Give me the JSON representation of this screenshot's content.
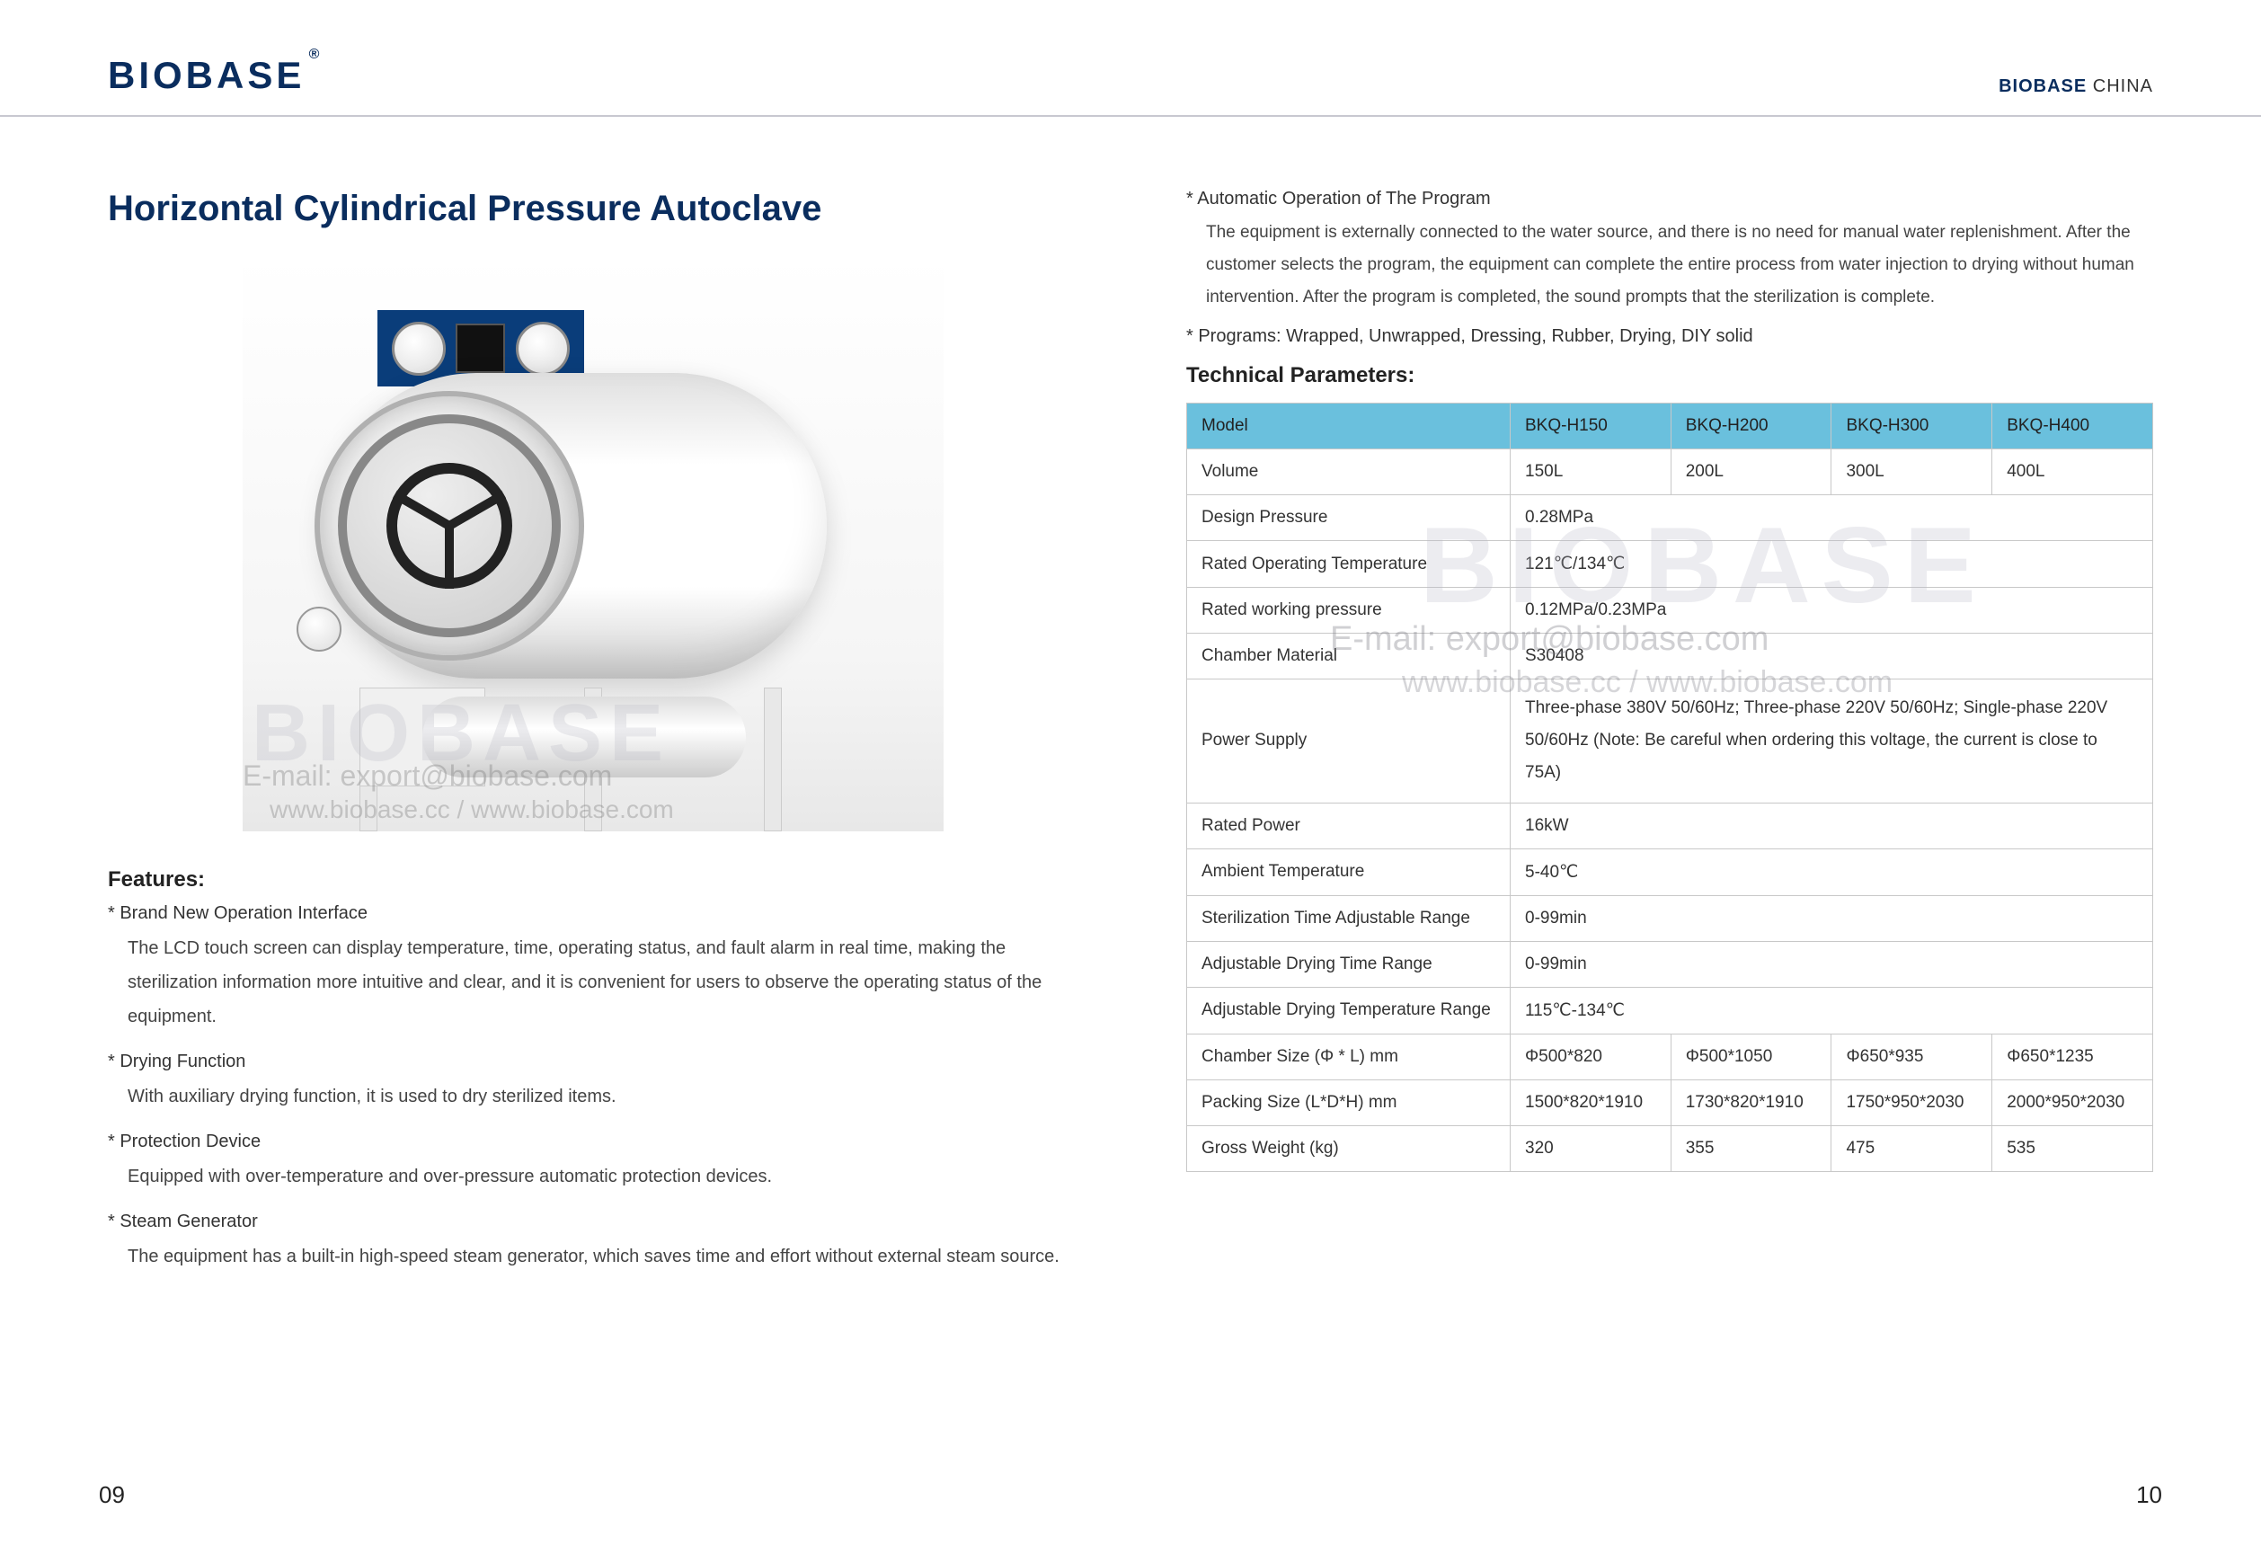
{
  "header": {
    "logo": "BIOBASE",
    "logo_sup": "®",
    "brand_right_bold": "BIOBASE",
    "brand_right_light": " CHINA"
  },
  "title": "Horizontal Cylindrical Pressure Autoclave",
  "watermarks": {
    "big": "BIOBASE",
    "email": "E-mail: export@biobase.com",
    "sites": "www.biobase.cc / www.biobase.com"
  },
  "features_title": "Features:",
  "features": [
    {
      "head": "Brand New Operation Interface",
      "body": "The LCD touch screen can display temperature, time, operating status, and fault alarm in real time, making the sterilization information more intuitive and clear, and it is convenient for users to observe the operating status of the equipment."
    },
    {
      "head": "Drying Function",
      "body": "With auxiliary drying function, it is used to dry sterilized items."
    },
    {
      "head": "Protection Device",
      "body": "Equipped with over-temperature and over-pressure automatic protection devices."
    },
    {
      "head": "Steam Generator",
      "body": "The equipment has a built-in high-speed steam generator, which saves time and effort without external steam source."
    }
  ],
  "right_features": [
    {
      "head": "Automatic Operation of The Program",
      "body": "The equipment is externally connected to the water source, and there is no need for manual water replenishment. After the customer selects the program, the equipment can complete the entire process from water injection to drying without human intervention. After the program is completed, the sound prompts that the sterilization is complete."
    },
    {
      "head": "Programs: Wrapped, Unwrapped, Dressing, Rubber, Drying, DIY solid",
      "body": ""
    }
  ],
  "tech_title": "Technical Parameters:",
  "spec_table": {
    "header": [
      "Model",
      "BKQ-H150",
      "BKQ-H200",
      "BKQ-H300",
      "BKQ-H400"
    ],
    "rows": [
      {
        "label": "Volume",
        "cells": [
          "150L",
          "200L",
          "300L",
          "400L"
        ],
        "colspan": 1
      },
      {
        "label": "Design Pressure",
        "cells": [
          "0.28MPa"
        ],
        "colspan": 4
      },
      {
        "label": "Rated Operating Temperature",
        "cells": [
          "121℃/134℃"
        ],
        "colspan": 4
      },
      {
        "label": "Rated working pressure",
        "cells": [
          "0.12MPa/0.23MPa"
        ],
        "colspan": 4
      },
      {
        "label": "Chamber Material",
        "cells": [
          "S30408"
        ],
        "colspan": 4
      },
      {
        "label": "Power Supply",
        "cells": [
          "Three-phase 380V 50/60Hz; Three-phase 220V 50/60Hz; Single-phase 220V 50/60Hz (Note: Be careful when ordering this voltage, the current is close to 75A)"
        ],
        "colspan": 4
      },
      {
        "label": "Rated Power",
        "cells": [
          "16kW"
        ],
        "colspan": 4
      },
      {
        "label": "Ambient Temperature",
        "cells": [
          "5-40℃"
        ],
        "colspan": 4
      },
      {
        "label": "Sterilization Time Adjustable Range",
        "cells": [
          "0-99min"
        ],
        "colspan": 4
      },
      {
        "label": "Adjustable Drying Time Range",
        "cells": [
          "0-99min"
        ],
        "colspan": 4
      },
      {
        "label": "Adjustable Drying Temperature Range",
        "cells": [
          "115℃-134℃"
        ],
        "colspan": 4
      },
      {
        "label": "Chamber Size (Φ * L) mm",
        "cells": [
          "Φ500*820",
          "Φ500*1050",
          "Φ650*935",
          "Φ650*1235"
        ],
        "colspan": 1
      },
      {
        "label": "Packing Size (L*D*H) mm",
        "cells": [
          "1500*820*1910",
          "1730*820*1910",
          "1750*950*2030",
          "2000*950*2030"
        ],
        "colspan": 1
      },
      {
        "label": "Gross Weight (kg)",
        "cells": [
          "320",
          "355",
          "475",
          "535"
        ],
        "colspan": 1
      }
    ]
  },
  "page_left": "09",
  "page_right": "10",
  "colors": {
    "primary": "#0a2d5e",
    "table_header": "#6ac0dd",
    "border": "#c8c8c8",
    "text": "#333333"
  }
}
